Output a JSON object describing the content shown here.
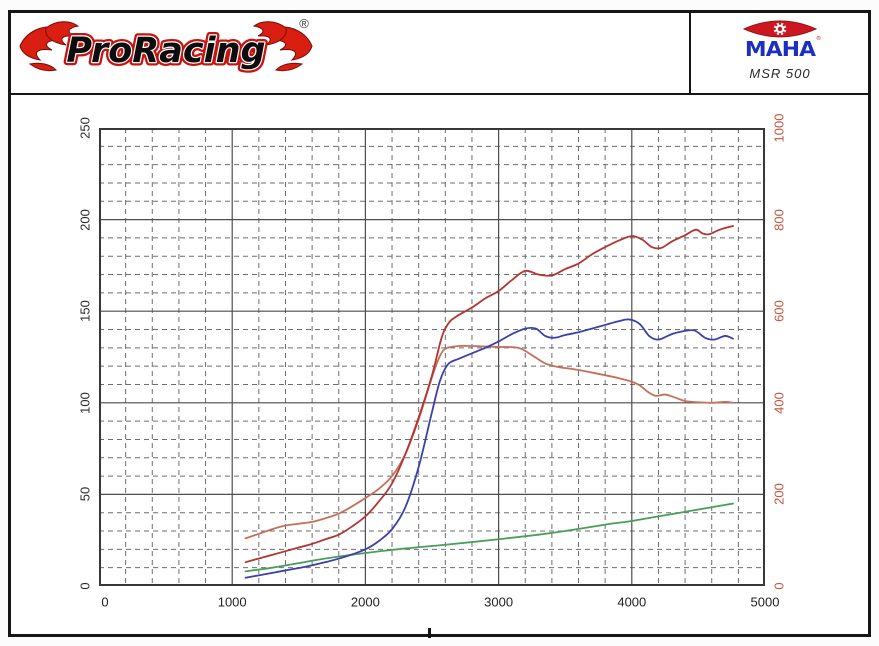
{
  "header": {
    "proracing": {
      "text": "ProRacing",
      "reg": "®"
    },
    "maha": {
      "text": "MAHA",
      "reg": "®",
      "model": "MSR 500"
    }
  },
  "chart_data": {
    "type": "line",
    "title": "",
    "xlabel": "",
    "ylabel_left": "",
    "ylabel_right": "",
    "legend": "none",
    "grid": {
      "major": "solid",
      "minor": "dashed"
    },
    "x_axis": {
      "min": 0,
      "max": 5000,
      "major_step": 1000,
      "minor_step": 200,
      "tick_labels": [
        "0",
        "1000",
        "2000",
        "3000",
        "4000",
        "5000"
      ]
    },
    "y_axis_left": {
      "min": 0,
      "max": 250,
      "major_step": 50,
      "minor_step": 10,
      "tick_labels": [
        "0",
        "50",
        "100",
        "150",
        "200",
        "250"
      ],
      "color": "#2c2c2c"
    },
    "y_axis_right": {
      "min": 0,
      "max": 1000,
      "major_step": 200,
      "minor_step": 40,
      "tick_labels": [
        "0",
        "200",
        "400",
        "600",
        "800",
        "1000"
      ],
      "color": "#c25742"
    },
    "series": [
      {
        "name": "green-curve",
        "color": "#4a9e5c",
        "axis": "left",
        "points": [
          [
            1100,
            8
          ],
          [
            1300,
            10
          ],
          [
            1500,
            12.5
          ],
          [
            1700,
            15
          ],
          [
            2000,
            18
          ],
          [
            2300,
            20.5
          ],
          [
            2600,
            22.5
          ],
          [
            3000,
            25.5
          ],
          [
            3300,
            28
          ],
          [
            3500,
            30
          ],
          [
            3800,
            33.5
          ],
          [
            4000,
            35.5
          ],
          [
            4200,
            38
          ],
          [
            4400,
            40.5
          ],
          [
            4600,
            43
          ],
          [
            4760,
            45
          ]
        ]
      },
      {
        "name": "salmon-curve",
        "color": "#c4705a",
        "axis": "left",
        "points": [
          [
            1100,
            26
          ],
          [
            1200,
            28.5
          ],
          [
            1300,
            31
          ],
          [
            1400,
            33
          ],
          [
            1500,
            34
          ],
          [
            1600,
            35
          ],
          [
            1700,
            37
          ],
          [
            1800,
            39.5
          ],
          [
            1900,
            43.5
          ],
          [
            2000,
            48
          ],
          [
            2100,
            53
          ],
          [
            2200,
            60
          ],
          [
            2300,
            72
          ],
          [
            2400,
            91
          ],
          [
            2500,
            114
          ],
          [
            2550,
            124
          ],
          [
            2600,
            129.5
          ],
          [
            2700,
            131
          ],
          [
            2800,
            131
          ],
          [
            3000,
            130.5
          ],
          [
            3150,
            130
          ],
          [
            3250,
            126
          ],
          [
            3350,
            121.5
          ],
          [
            3450,
            119.5
          ],
          [
            3550,
            118.5
          ],
          [
            3700,
            116.5
          ],
          [
            3900,
            113.5
          ],
          [
            4000,
            111.5
          ],
          [
            4060,
            109.5
          ],
          [
            4120,
            106
          ],
          [
            4180,
            103.8
          ],
          [
            4250,
            104.5
          ],
          [
            4320,
            103
          ],
          [
            4400,
            101
          ],
          [
            4500,
            100.3
          ],
          [
            4600,
            100
          ],
          [
            4700,
            100.5
          ],
          [
            4760,
            100
          ]
        ]
      },
      {
        "name": "blue-curve",
        "color": "#3a3fae",
        "axis": "left",
        "points": [
          [
            1100,
            4.5
          ],
          [
            1250,
            6.5
          ],
          [
            1400,
            8.5
          ],
          [
            1550,
            10.5
          ],
          [
            1700,
            13
          ],
          [
            1850,
            16
          ],
          [
            2000,
            20
          ],
          [
            2100,
            24.5
          ],
          [
            2200,
            31
          ],
          [
            2300,
            43
          ],
          [
            2400,
            65
          ],
          [
            2500,
            95
          ],
          [
            2560,
            112
          ],
          [
            2620,
            121
          ],
          [
            2700,
            124
          ],
          [
            2800,
            127
          ],
          [
            2900,
            130
          ],
          [
            3000,
            133.5
          ],
          [
            3100,
            137.5
          ],
          [
            3200,
            140.5
          ],
          [
            3280,
            140.5
          ],
          [
            3350,
            136.5
          ],
          [
            3420,
            135.5
          ],
          [
            3500,
            137
          ],
          [
            3600,
            138.5
          ],
          [
            3700,
            140.5
          ],
          [
            3800,
            142.5
          ],
          [
            3900,
            144.5
          ],
          [
            3980,
            145.5
          ],
          [
            4060,
            143
          ],
          [
            4130,
            136.5
          ],
          [
            4200,
            134.5
          ],
          [
            4300,
            137.5
          ],
          [
            4380,
            139
          ],
          [
            4470,
            139.5
          ],
          [
            4550,
            135.5
          ],
          [
            4620,
            134.5
          ],
          [
            4700,
            136.5
          ],
          [
            4760,
            135
          ]
        ]
      },
      {
        "name": "red-curve",
        "color": "#b33431",
        "axis": "left",
        "points": [
          [
            1100,
            13
          ],
          [
            1200,
            15
          ],
          [
            1300,
            17
          ],
          [
            1400,
            19
          ],
          [
            1500,
            21
          ],
          [
            1600,
            23
          ],
          [
            1700,
            25.5
          ],
          [
            1800,
            28
          ],
          [
            1900,
            32.5
          ],
          [
            2000,
            38
          ],
          [
            2100,
            46
          ],
          [
            2200,
            56
          ],
          [
            2300,
            72
          ],
          [
            2400,
            92
          ],
          [
            2500,
            115
          ],
          [
            2570,
            135
          ],
          [
            2620,
            143
          ],
          [
            2680,
            147
          ],
          [
            2800,
            152
          ],
          [
            2900,
            157
          ],
          [
            3000,
            161
          ],
          [
            3100,
            167
          ],
          [
            3200,
            172
          ],
          [
            3300,
            170
          ],
          [
            3400,
            169.5
          ],
          [
            3500,
            173
          ],
          [
            3600,
            176
          ],
          [
            3700,
            181
          ],
          [
            3800,
            185
          ],
          [
            3900,
            188.5
          ],
          [
            4000,
            191
          ],
          [
            4080,
            189
          ],
          [
            4150,
            185
          ],
          [
            4220,
            184.5
          ],
          [
            4300,
            188
          ],
          [
            4400,
            191.5
          ],
          [
            4480,
            194.5
          ],
          [
            4530,
            192.5
          ],
          [
            4580,
            192
          ],
          [
            4660,
            194.5
          ],
          [
            4760,
            196.5
          ]
        ]
      }
    ]
  }
}
